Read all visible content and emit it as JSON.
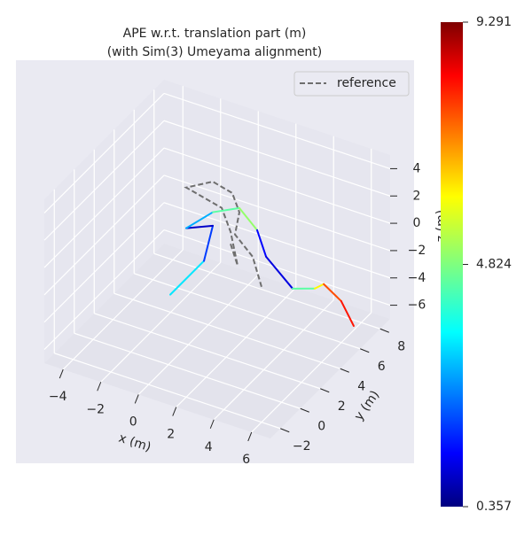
{
  "chart_data": {
    "type": "trajectory3d",
    "title": "APE w.r.t. translation part (m)",
    "subtitle": "(with Sim(3) Umeyama alignment)",
    "xlabel": "x (m)",
    "ylabel": "y (m)",
    "zlabel": "z (m)",
    "xlim": [
      -5,
      7
    ],
    "ylim": [
      -3,
      9
    ],
    "zlim": [
      -7,
      5
    ],
    "xticks": [
      {
        "value": -4,
        "label": "−4"
      },
      {
        "value": -2,
        "label": "−2"
      },
      0,
      2,
      4,
      6
    ],
    "yticks": [
      {
        "value": -2,
        "label": "−2"
      },
      0,
      2,
      4,
      6,
      8
    ],
    "zticks": [
      {
        "value": -6,
        "label": "−6"
      },
      {
        "value": -4,
        "label": "−4"
      },
      {
        "value": -2,
        "label": "−2"
      },
      0,
      2,
      4
    ],
    "grid": true,
    "legend": "upper right",
    "series": [
      {
        "name": "reference",
        "color": "#6e6e6e",
        "dashed": true,
        "x": [
          1.47,
          2.61,
          0.99,
          -0.32,
          -2.54,
          -1.72,
          -0.49,
          0.56,
          1.27,
          2.86,
          4.41
        ],
        "y": [
          3.45,
          2.0,
          4.36,
          5.94,
          6.58,
          7.69,
          7.32,
          6.05,
          4.27,
          3.04,
          1.0
        ],
        "z": [
          0,
          0,
          0,
          0,
          0,
          0,
          0,
          0,
          0,
          0,
          0
        ]
      },
      {
        "x": [
          1.09,
          1.09,
          0.04,
          -0.92,
          -0.5,
          0.39,
          1.98,
          3.39,
          5.72,
          6.6,
          6.78,
          6.52,
          6.92
        ],
        "y": [
          -1.88,
          1.5,
          4.37,
          3.52,
          5.39,
          6.37,
          5.15,
          3.38,
          1.64,
          2.2,
          2.76,
          5.0,
          5.5
        ],
        "z": [
          0,
          0,
          0,
          0,
          0,
          0,
          0,
          0,
          0,
          0,
          0,
          -3,
          -5
        ],
        "error": [
          3.5,
          2.0,
          1.0,
          3.0,
          4.5,
          5.0,
          1.5,
          1.2,
          4.5,
          6.0,
          7.5,
          8.0,
          9.2
        ]
      }
    ],
    "colorbar": {
      "cmap": "jet",
      "clim": [
        0.357,
        9.291
      ],
      "ticks": [
        0.357,
        4.824,
        9.291
      ]
    }
  }
}
